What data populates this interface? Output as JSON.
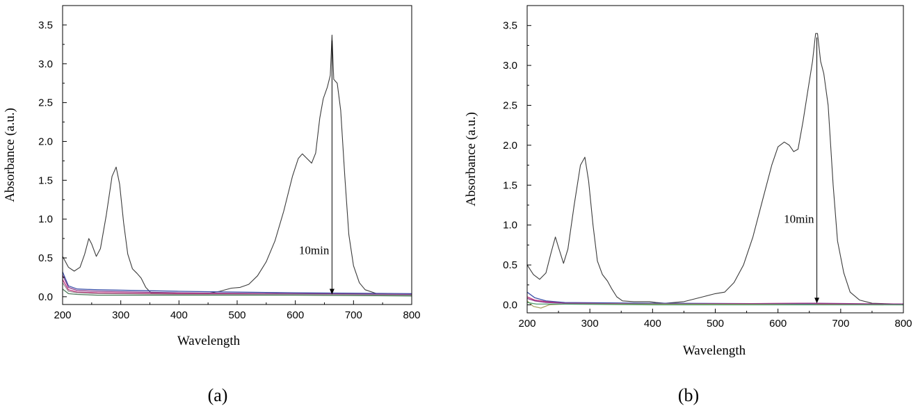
{
  "chart_data": [
    {
      "panel_label": "(a)",
      "type": "line",
      "xlabel": "Wavelength",
      "ylabel": "Absorbance (a.u.)",
      "xlim": [
        200,
        800
      ],
      "ylim": [
        -0.1,
        3.75
      ],
      "xticks": [
        200,
        300,
        400,
        500,
        600,
        700,
        800
      ],
      "yticks": [
        0.0,
        0.5,
        1.0,
        1.5,
        2.0,
        2.5,
        3.0,
        3.5
      ],
      "annotation": {
        "text": "10min",
        "arrow_x": 663,
        "arrow_from": 3.3,
        "arrow_to": 0.03
      },
      "series": [
        {
          "color": "#3a3a3a",
          "points": [
            [
              200,
              0.52
            ],
            [
              210,
              0.38
            ],
            [
              220,
              0.33
            ],
            [
              230,
              0.38
            ],
            [
              238,
              0.55
            ],
            [
              245,
              0.75
            ],
            [
              250,
              0.68
            ],
            [
              258,
              0.52
            ],
            [
              265,
              0.62
            ],
            [
              275,
              1.05
            ],
            [
              285,
              1.55
            ],
            [
              292,
              1.67
            ],
            [
              298,
              1.45
            ],
            [
              305,
              0.95
            ],
            [
              312,
              0.55
            ],
            [
              320,
              0.36
            ],
            [
              328,
              0.3
            ],
            [
              335,
              0.24
            ],
            [
              343,
              0.12
            ],
            [
              352,
              0.05
            ],
            [
              370,
              0.05
            ],
            [
              400,
              0.04
            ],
            [
              440,
              0.03
            ],
            [
              470,
              0.07
            ],
            [
              490,
              0.11
            ],
            [
              505,
              0.12
            ],
            [
              520,
              0.16
            ],
            [
              535,
              0.27
            ],
            [
              550,
              0.45
            ],
            [
              565,
              0.72
            ],
            [
              580,
              1.1
            ],
            [
              595,
              1.55
            ],
            [
              605,
              1.78
            ],
            [
              612,
              1.84
            ],
            [
              620,
              1.78
            ],
            [
              628,
              1.72
            ],
            [
              635,
              1.85
            ],
            [
              642,
              2.3
            ],
            [
              648,
              2.55
            ],
            [
              655,
              2.7
            ],
            [
              660,
              2.85
            ],
            [
              663,
              3.37
            ],
            [
              666,
              2.8
            ],
            [
              672,
              2.75
            ],
            [
              678,
              2.4
            ],
            [
              685,
              1.55
            ],
            [
              692,
              0.8
            ],
            [
              700,
              0.4
            ],
            [
              710,
              0.18
            ],
            [
              720,
              0.09
            ],
            [
              740,
              0.04
            ],
            [
              760,
              0.03
            ],
            [
              800,
              0.03
            ]
          ]
        },
        {
          "color": "#3b4fa8",
          "points": [
            [
              200,
              0.32
            ],
            [
              210,
              0.14
            ],
            [
              225,
              0.1
            ],
            [
              260,
              0.09
            ],
            [
              400,
              0.07
            ],
            [
              600,
              0.05
            ],
            [
              800,
              0.04
            ]
          ]
        },
        {
          "color": "#8a3a8a",
          "points": [
            [
              200,
              0.28
            ],
            [
              210,
              0.12
            ],
            [
              225,
              0.08
            ],
            [
              260,
              0.07
            ],
            [
              400,
              0.05
            ],
            [
              600,
              0.04
            ],
            [
              800,
              0.03
            ]
          ]
        },
        {
          "color": "#c0307a",
          "points": [
            [
              200,
              0.22
            ],
            [
              210,
              0.09
            ],
            [
              225,
              0.06
            ],
            [
              260,
              0.05
            ],
            [
              400,
              0.04
            ],
            [
              600,
              0.03
            ],
            [
              800,
              0.02
            ]
          ]
        },
        {
          "color": "#9a9a9a",
          "points": [
            [
              200,
              0.18
            ],
            [
              210,
              0.07
            ],
            [
              225,
              0.05
            ],
            [
              260,
              0.04
            ],
            [
              400,
              0.03
            ],
            [
              600,
              0.03
            ],
            [
              800,
              0.02
            ]
          ]
        },
        {
          "color": "#4a7a5a",
          "points": [
            [
              200,
              0.1
            ],
            [
              210,
              0.04
            ],
            [
              225,
              0.03
            ],
            [
              260,
              0.02
            ],
            [
              400,
              0.02
            ],
            [
              600,
              0.02
            ],
            [
              800,
              0.01
            ]
          ]
        }
      ]
    },
    {
      "panel_label": "(b)",
      "type": "line",
      "xlabel": "Wavelength",
      "ylabel": "Absorbance (a.u.)",
      "xlim": [
        200,
        800
      ],
      "ylim": [
        -0.1,
        3.75
      ],
      "xticks": [
        200,
        300,
        400,
        500,
        600,
        700,
        800
      ],
      "yticks": [
        0.0,
        0.5,
        1.0,
        1.5,
        2.0,
        2.5,
        3.0,
        3.5
      ],
      "annotation": {
        "text": "10min",
        "arrow_x": 662,
        "arrow_from": 3.35,
        "arrow_to": 0.02
      },
      "series": [
        {
          "color": "#3a3a3a",
          "points": [
            [
              200,
              0.5
            ],
            [
              210,
              0.38
            ],
            [
              220,
              0.32
            ],
            [
              230,
              0.4
            ],
            [
              238,
              0.65
            ],
            [
              245,
              0.85
            ],
            [
              250,
              0.72
            ],
            [
              258,
              0.52
            ],
            [
              265,
              0.7
            ],
            [
              275,
              1.25
            ],
            [
              285,
              1.75
            ],
            [
              292,
              1.85
            ],
            [
              298,
              1.55
            ],
            [
              305,
              1.0
            ],
            [
              312,
              0.55
            ],
            [
              320,
              0.38
            ],
            [
              328,
              0.3
            ],
            [
              335,
              0.2
            ],
            [
              343,
              0.1
            ],
            [
              352,
              0.05
            ],
            [
              370,
              0.04
            ],
            [
              395,
              0.04
            ],
            [
              405,
              0.03
            ],
            [
              420,
              0.02
            ],
            [
              450,
              0.04
            ],
            [
              480,
              0.1
            ],
            [
              500,
              0.14
            ],
            [
              515,
              0.16
            ],
            [
              530,
              0.28
            ],
            [
              545,
              0.5
            ],
            [
              560,
              0.85
            ],
            [
              575,
              1.3
            ],
            [
              590,
              1.75
            ],
            [
              600,
              1.98
            ],
            [
              610,
              2.04
            ],
            [
              618,
              2.0
            ],
            [
              625,
              1.92
            ],
            [
              632,
              1.95
            ],
            [
              640,
              2.3
            ],
            [
              648,
              2.7
            ],
            [
              655,
              3.05
            ],
            [
              660,
              3.4
            ],
            [
              663,
              3.4
            ],
            [
              668,
              3.05
            ],
            [
              673,
              2.9
            ],
            [
              680,
              2.5
            ],
            [
              688,
              1.5
            ],
            [
              695,
              0.8
            ],
            [
              705,
              0.4
            ],
            [
              715,
              0.16
            ],
            [
              730,
              0.06
            ],
            [
              750,
              0.02
            ],
            [
              800,
              0.01
            ]
          ]
        },
        {
          "color": "#3b4fa8",
          "points": [
            [
              200,
              0.16
            ],
            [
              212,
              0.09
            ],
            [
              230,
              0.05
            ],
            [
              260,
              0.03
            ],
            [
              400,
              0.02
            ],
            [
              800,
              0.01
            ]
          ]
        },
        {
          "color": "#c0307a",
          "points": [
            [
              200,
              0.1
            ],
            [
              212,
              0.06
            ],
            [
              230,
              0.04
            ],
            [
              260,
              0.02
            ],
            [
              400,
              0.01
            ],
            [
              650,
              0.02
            ],
            [
              680,
              0.01
            ],
            [
              800,
              0.01
            ]
          ]
        },
        {
          "color": "#8a3a8a",
          "points": [
            [
              200,
              0.08
            ],
            [
              212,
              0.05
            ],
            [
              230,
              0.03
            ],
            [
              260,
              0.02
            ],
            [
              400,
              0.01
            ],
            [
              660,
              0.02
            ],
            [
              800,
              0.01
            ]
          ]
        },
        {
          "color": "#a8a060",
          "points": [
            [
              200,
              0.05
            ],
            [
              210,
              -0.02
            ],
            [
              222,
              -0.04
            ],
            [
              235,
              0.0
            ],
            [
              260,
              0.01
            ],
            [
              400,
              0.01
            ],
            [
              800,
              0.0
            ]
          ]
        },
        {
          "color": "#4a9a6a",
          "points": [
            [
              200,
              0.03
            ],
            [
              215,
              0.01
            ],
            [
              240,
              0.01
            ],
            [
              400,
              0.0
            ],
            [
              800,
              0.0
            ]
          ]
        }
      ]
    }
  ]
}
